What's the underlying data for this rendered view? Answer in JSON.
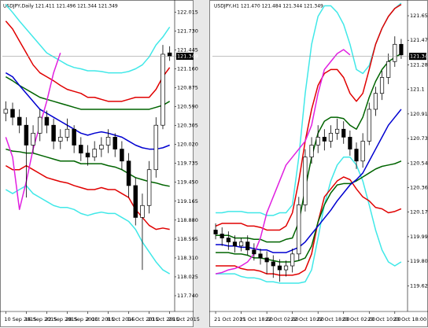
{
  "chart_data": [
    {
      "type": "candlestick",
      "title": "USDJPY,Daily 121.411 121.496 121.344 121.349",
      "categories": [
        "10 Sep 2015",
        null,
        null,
        "16 Sep 2015",
        null,
        null,
        "22 Sep 2015",
        null,
        null,
        "28 Sep 2015",
        null,
        null,
        "2 Oct 2015",
        null,
        null,
        "8 Oct 2015",
        null,
        null,
        "14 Oct 2015",
        null,
        null,
        "20 Oct 2015",
        null,
        null,
        "26 Oct 2015"
      ],
      "open": [
        120.49,
        120.55,
        120.43,
        120.31,
        120.01,
        120.19,
        120.43,
        120.31,
        120.07,
        120.13,
        120.25,
        120.01,
        119.89,
        119.83,
        119.95,
        120.01,
        120.13,
        119.95,
        119.77,
        119.4,
        118.92,
        119.1,
        119.64,
        120.31,
        121.4
      ],
      "high": [
        120.67,
        120.65,
        120.55,
        120.43,
        120.31,
        120.55,
        120.53,
        120.41,
        120.25,
        120.41,
        120.31,
        120.13,
        120.01,
        120.07,
        120.13,
        120.25,
        120.19,
        120.07,
        119.89,
        119.52,
        119.28,
        119.77,
        120.43,
        121.52,
        121.5
      ],
      "low": [
        120.37,
        120.31,
        120.19,
        119.22,
        119.89,
        120.07,
        120.19,
        119.95,
        119.95,
        120.07,
        119.89,
        119.77,
        119.7,
        119.77,
        119.83,
        119.89,
        119.83,
        119.64,
        119.22,
        118.8,
        118.13,
        118.98,
        119.52,
        120.25,
        121.28
      ],
      "close": [
        120.55,
        120.43,
        120.31,
        120.01,
        120.19,
        120.43,
        120.31,
        120.07,
        120.13,
        120.25,
        120.01,
        119.89,
        119.83,
        119.95,
        120.01,
        120.13,
        119.95,
        119.77,
        119.4,
        118.92,
        119.1,
        119.64,
        120.31,
        121.38,
        121.35
      ],
      "series": [
        {
          "color": "#40e8e8",
          "values": [
            122.13,
            122.01,
            121.88,
            121.76,
            121.64,
            121.52,
            121.4,
            121.34,
            121.28,
            121.22,
            121.18,
            121.16,
            121.13,
            121.13,
            121.12,
            121.1,
            121.1,
            121.1,
            121.12,
            121.16,
            121.22,
            121.34,
            121.52,
            121.64,
            121.79
          ]
        },
        {
          "color": "#40e8e8",
          "values": [
            119.34,
            119.28,
            119.34,
            119.4,
            119.28,
            119.22,
            119.16,
            119.1,
            119.07,
            119.07,
            119.04,
            118.98,
            118.95,
            118.98,
            119.0,
            118.98,
            118.98,
            118.92,
            118.86,
            118.74,
            118.55,
            118.4,
            118.25,
            118.13,
            118.07
          ]
        },
        {
          "color": "#e00000",
          "values": [
            121.88,
            121.76,
            121.58,
            121.4,
            121.22,
            121.1,
            121.04,
            120.98,
            120.91,
            120.85,
            120.82,
            120.79,
            120.73,
            120.73,
            120.7,
            120.67,
            120.67,
            120.67,
            120.7,
            120.73,
            120.73,
            120.73,
            120.85,
            121.04,
            121.18
          ]
        },
        {
          "color": "#e00000",
          "values": [
            119.7,
            119.64,
            119.64,
            119.7,
            119.64,
            119.58,
            119.52,
            119.49,
            119.46,
            119.44,
            119.4,
            119.37,
            119.34,
            119.34,
            119.37,
            119.34,
            119.34,
            119.28,
            119.22,
            119.04,
            118.92,
            118.8,
            118.74,
            118.76,
            118.74
          ]
        },
        {
          "color": "#006400",
          "values": [
            121.04,
            120.98,
            120.91,
            120.85,
            120.79,
            120.73,
            120.7,
            120.67,
            120.64,
            120.61,
            120.58,
            120.55,
            120.55,
            120.55,
            120.55,
            120.55,
            120.55,
            120.55,
            120.55,
            120.55,
            120.55,
            120.55,
            120.58,
            120.61,
            120.67
          ]
        },
        {
          "color": "#006400",
          "values": [
            119.95,
            119.92,
            119.91,
            119.89,
            119.89,
            119.86,
            119.83,
            119.8,
            119.77,
            119.77,
            119.77,
            119.73,
            119.73,
            119.73,
            119.73,
            119.7,
            119.68,
            119.64,
            119.58,
            119.52,
            119.49,
            119.46,
            119.44,
            119.41,
            119.39
          ]
        },
        {
          "color": "#0000d0",
          "values": [
            121.1,
            121.04,
            120.91,
            120.79,
            120.67,
            120.55,
            120.49,
            120.43,
            120.37,
            120.31,
            120.25,
            120.19,
            120.16,
            120.19,
            120.21,
            120.19,
            120.16,
            120.13,
            120.07,
            120.01,
            119.97,
            119.95,
            119.95,
            119.97,
            120.01
          ]
        },
        {
          "color": "#e020e0",
          "values": [
            120.13,
            119.83,
            119.04,
            119.46,
            119.95,
            120.31,
            120.67,
            121.1,
            121.4,
            null,
            null,
            null,
            null,
            null,
            null,
            null,
            null,
            null,
            null,
            null,
            null,
            null,
            null,
            null,
            null
          ]
        }
      ],
      "ylim": [
        117.55,
        122.15
      ],
      "yticks": [
        122.015,
        {
          "value": 121.73,
          "label": "121.730"
        },
        121.445,
        {
          "value": 121.16,
          "label": "121.160"
        },
        120.875,
        {
          "value": 120.59,
          "label": "120.590"
        },
        120.305,
        {
          "value": 120.02,
          "label": "120.020"
        },
        119.735,
        {
          "value": 119.45,
          "label": "119.450"
        },
        119.165,
        {
          "value": 118.88,
          "label": "118.880"
        },
        118.595,
        {
          "value": 118.31,
          "label": "118.310"
        },
        118.025,
        {
          "value": 117.74,
          "label": "117.740"
        }
      ],
      "last_price": 121.349
    },
    {
      "type": "candlestick",
      "title": "USDJPY,H1 121.470 121.484 121.344 121.349",
      "categories": [
        "21 Oct 2015",
        null,
        null,
        null,
        "21 Oct 18:00",
        null,
        null,
        null,
        "22 Oct 02:00",
        null,
        null,
        null,
        "22 Oct 10:00",
        null,
        null,
        null,
        "22 Oct 18:00",
        null,
        null,
        null,
        "23 Oct 02:00",
        null,
        null,
        null,
        "23 Oct 10:00",
        null,
        null,
        null,
        "23 Oct 18:00",
        null
      ],
      "open": [
        120.04,
        120.01,
        119.98,
        119.95,
        119.92,
        119.95,
        119.89,
        119.86,
        119.83,
        119.8,
        119.77,
        119.74,
        119.77,
        119.86,
        120.23,
        120.59,
        120.68,
        120.74,
        120.71,
        120.77,
        120.8,
        120.74,
        120.65,
        120.56,
        120.71,
        120.95,
        121.07,
        121.19,
        121.31,
        121.44
      ],
      "high": [
        120.09,
        120.06,
        120.03,
        120.0,
        119.98,
        120.0,
        119.94,
        119.9,
        119.88,
        119.85,
        119.82,
        119.81,
        119.9,
        120.29,
        120.65,
        120.74,
        120.83,
        120.8,
        120.83,
        120.88,
        120.86,
        120.79,
        120.7,
        120.77,
        121.0,
        121.12,
        121.24,
        121.37,
        121.5,
        121.48
      ],
      "low": [
        119.97,
        119.92,
        119.89,
        119.87,
        119.88,
        119.85,
        119.81,
        119.78,
        119.71,
        119.68,
        119.65,
        119.69,
        119.72,
        119.81,
        120.18,
        120.54,
        120.62,
        120.64,
        120.66,
        120.72,
        120.69,
        120.6,
        120.5,
        120.51,
        120.68,
        120.9,
        121.02,
        121.14,
        121.27,
        121.33
      ],
      "close": [
        120.01,
        119.98,
        119.95,
        119.92,
        119.95,
        119.89,
        119.86,
        119.83,
        119.8,
        119.77,
        119.74,
        119.77,
        119.86,
        120.23,
        120.59,
        120.68,
        120.74,
        120.71,
        120.77,
        120.8,
        120.74,
        120.65,
        120.56,
        120.71,
        120.95,
        121.07,
        121.19,
        121.31,
        121.44,
        121.36
      ],
      "series": [
        {
          "color": "#40e8e8",
          "values": [
            120.17,
            120.17,
            120.18,
            120.18,
            120.18,
            120.17,
            120.17,
            120.17,
            120.15,
            120.15,
            120.17,
            120.17,
            120.23,
            120.59,
            121.07,
            121.44,
            121.65,
            121.73,
            121.73,
            121.68,
            121.59,
            121.44,
            121.25,
            121.22,
            121.28,
            121.44,
            121.56,
            121.65,
            121.71,
            121.75
          ]
        },
        {
          "color": "#40e8e8",
          "values": [
            119.71,
            119.71,
            119.71,
            119.71,
            119.69,
            119.68,
            119.68,
            119.67,
            119.65,
            119.65,
            119.64,
            119.64,
            119.64,
            119.64,
            119.65,
            119.74,
            119.98,
            120.23,
            120.41,
            120.53,
            120.59,
            120.59,
            120.53,
            120.41,
            120.23,
            120.04,
            119.89,
            119.8,
            119.77,
            119.8
          ]
        },
        {
          "color": "#e00000",
          "values": [
            120.07,
            120.09,
            120.09,
            120.09,
            120.09,
            120.07,
            120.07,
            120.06,
            120.04,
            120.04,
            120.04,
            120.07,
            120.17,
            120.41,
            120.71,
            120.95,
            121.13,
            121.22,
            121.25,
            121.25,
            121.19,
            121.07,
            121.01,
            121.07,
            121.25,
            121.44,
            121.56,
            121.65,
            121.71,
            121.74
          ]
        },
        {
          "color": "#e00000",
          "values": [
            119.77,
            119.77,
            119.77,
            119.77,
            119.75,
            119.74,
            119.74,
            119.73,
            119.71,
            119.71,
            119.7,
            119.7,
            119.7,
            119.71,
            119.74,
            119.86,
            120.1,
            120.29,
            120.35,
            120.41,
            120.44,
            120.42,
            120.35,
            120.29,
            120.26,
            120.21,
            120.2,
            120.17,
            120.18,
            120.2
          ]
        },
        {
          "color": "#006400",
          "values": [
            120.0,
            120.0,
            120.0,
            119.98,
            119.98,
            119.98,
            119.97,
            119.97,
            119.95,
            119.95,
            119.95,
            119.97,
            119.98,
            120.1,
            120.35,
            120.59,
            120.77,
            120.86,
            120.89,
            120.89,
            120.88,
            120.83,
            120.8,
            120.89,
            121.04,
            121.16,
            121.25,
            121.31,
            121.34,
            121.37
          ]
        },
        {
          "color": "#006400",
          "values": [
            119.87,
            119.87,
            119.87,
            119.86,
            119.86,
            119.85,
            119.83,
            119.83,
            119.82,
            119.81,
            119.8,
            119.8,
            119.8,
            119.81,
            119.83,
            119.92,
            120.1,
            120.23,
            120.32,
            120.38,
            120.39,
            120.39,
            120.41,
            120.44,
            120.47,
            120.5,
            120.52,
            120.53,
            120.54,
            120.56
          ]
        },
        {
          "color": "#0000d0",
          "values": [
            119.93,
            119.93,
            119.92,
            119.92,
            119.91,
            119.91,
            119.9,
            119.89,
            119.89,
            119.87,
            119.87,
            119.87,
            119.89,
            119.91,
            119.95,
            120.01,
            120.07,
            120.13,
            120.19,
            120.26,
            120.32,
            120.38,
            120.42,
            120.47,
            120.56,
            120.65,
            120.74,
            120.83,
            120.89,
            120.95
          ]
        },
        {
          "color": "#e020e0",
          "values": [
            119.71,
            119.72,
            119.74,
            119.75,
            119.77,
            119.8,
            119.86,
            119.98,
            120.17,
            120.29,
            120.41,
            120.53,
            120.59,
            120.65,
            120.71,
            120.83,
            121.07,
            121.25,
            121.31,
            121.37,
            121.4,
            121.36,
            null,
            null,
            null,
            null,
            null,
            null,
            null,
            null
          ]
        }
      ],
      "ylim": [
        119.45,
        121.75
      ],
      "yticks": [
        121.655,
        121.47,
        121.285,
        121.1,
        120.915,
        120.73,
        120.545,
        120.36,
        120.175,
        119.99,
        119.805,
        119.62
      ],
      "last_price": 121.349
    }
  ]
}
